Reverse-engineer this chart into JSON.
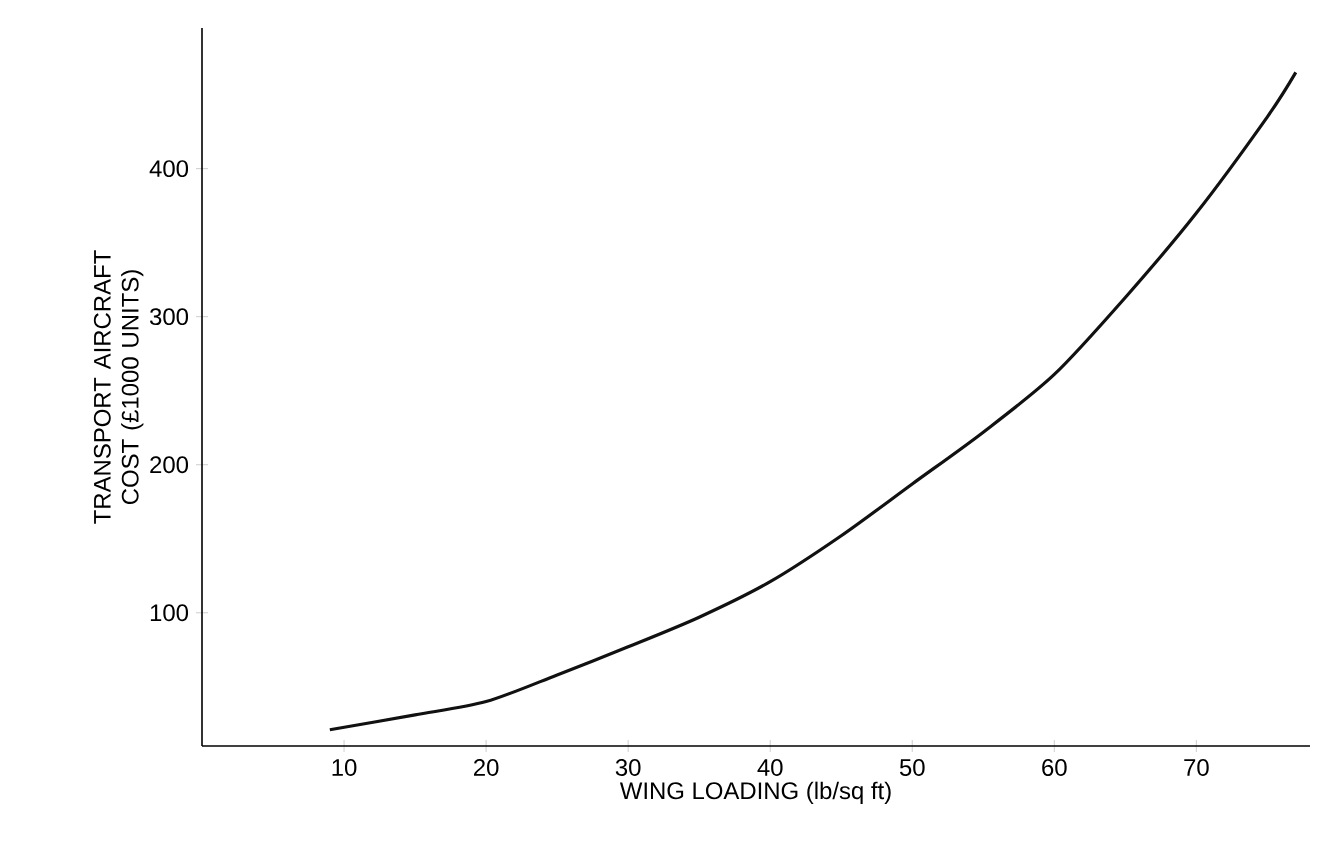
{
  "chart_data": {
    "type": "line",
    "xlabel": "WING LOADING  (lb/sq ft)",
    "ylabel": "TRANSPORT AIRCRAFT COST (£1000 UNITS)",
    "x": [
      9,
      15,
      20,
      25,
      30,
      35,
      40,
      45,
      50,
      55,
      60,
      65,
      70,
      75,
      77
    ],
    "values": [
      21,
      31,
      40,
      58,
      77,
      97,
      121,
      152,
      187,
      222,
      261,
      313,
      370,
      435,
      465
    ],
    "color": "#111111",
    "xlim": [
      0,
      78
    ],
    "ylim": [
      10,
      495
    ],
    "xticks": [
      10,
      20,
      30,
      40,
      50,
      60,
      70
    ],
    "yticks": [
      100,
      200,
      300,
      400
    ],
    "grid": false,
    "marker": "none",
    "line_style": "solid"
  }
}
